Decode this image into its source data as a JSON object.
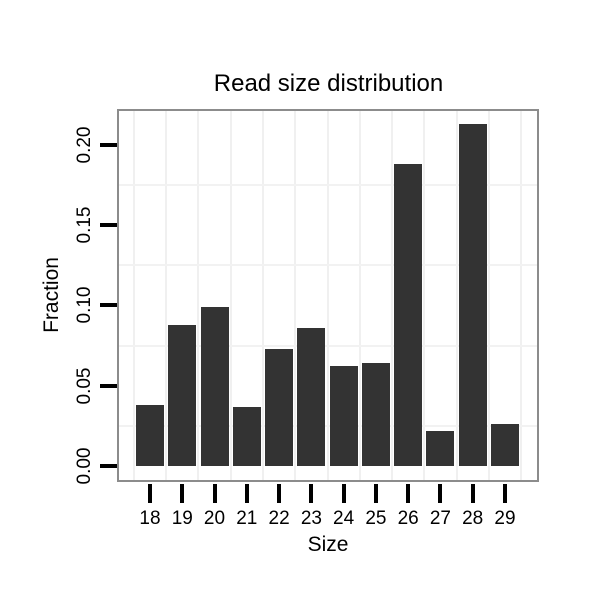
{
  "chart_data": {
    "type": "bar",
    "title": "Read size distribution",
    "xlabel": "Size",
    "ylabel": "Fraction",
    "categories": [
      "18",
      "19",
      "20",
      "21",
      "22",
      "23",
      "24",
      "25",
      "26",
      "27",
      "28",
      "29"
    ],
    "values": [
      0.038,
      0.088,
      0.099,
      0.037,
      0.073,
      0.086,
      0.062,
      0.064,
      0.188,
      0.022,
      0.213,
      0.026
    ],
    "ytick_labels": [
      "0.00",
      "0.05",
      "0.10",
      "0.15",
      "0.20"
    ],
    "ytick_values": [
      0.0,
      0.05,
      0.1,
      0.15,
      0.2
    ],
    "ylim": [
      0,
      0.222
    ],
    "grid": "minor gridlines only, light gray on white panel",
    "legend": "none",
    "bar_color": "#333333",
    "panel_border_color": "#8c8c8c",
    "gridline_color": "#f0f0f0",
    "tick_color": "#000000",
    "text_color": "#000000",
    "background_color": "#ffffff"
  }
}
